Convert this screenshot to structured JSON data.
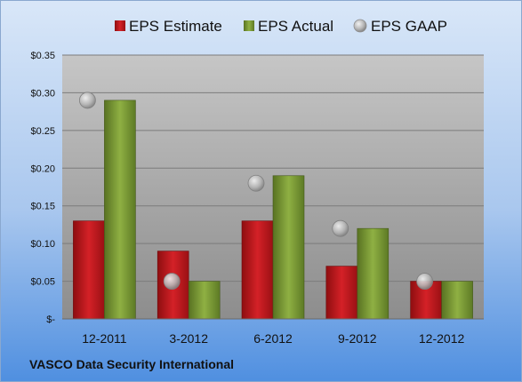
{
  "company": "VASCO Data Security International",
  "colors": {
    "estimate": "#c0171b",
    "actual": "#7a9a2e",
    "gaap": "#b8b8b8"
  },
  "chart_data": {
    "type": "bar",
    "categories": [
      "12-2011",
      "3-2012",
      "6-2012",
      "9-2012",
      "12-2012"
    ],
    "series": [
      {
        "name": "EPS Estimate",
        "type": "bar",
        "values": [
          0.13,
          0.09,
          0.13,
          0.07,
          0.05
        ]
      },
      {
        "name": "EPS Actual",
        "type": "bar",
        "values": [
          0.29,
          0.05,
          0.19,
          0.12,
          0.05
        ]
      },
      {
        "name": "EPS GAAP",
        "type": "scatter",
        "values": [
          0.29,
          0.05,
          0.18,
          0.12,
          0.05
        ]
      }
    ],
    "ylim": [
      0,
      0.35
    ],
    "yticks": [
      0,
      0.05,
      0.1,
      0.15,
      0.2,
      0.25,
      0.3,
      0.35
    ],
    "ytick_labels": [
      "$-",
      "$0.05",
      "$0.10",
      "$0.15",
      "$0.20",
      "$0.25",
      "$0.30",
      "$0.35"
    ],
    "grid": true,
    "legend_position": "top"
  }
}
